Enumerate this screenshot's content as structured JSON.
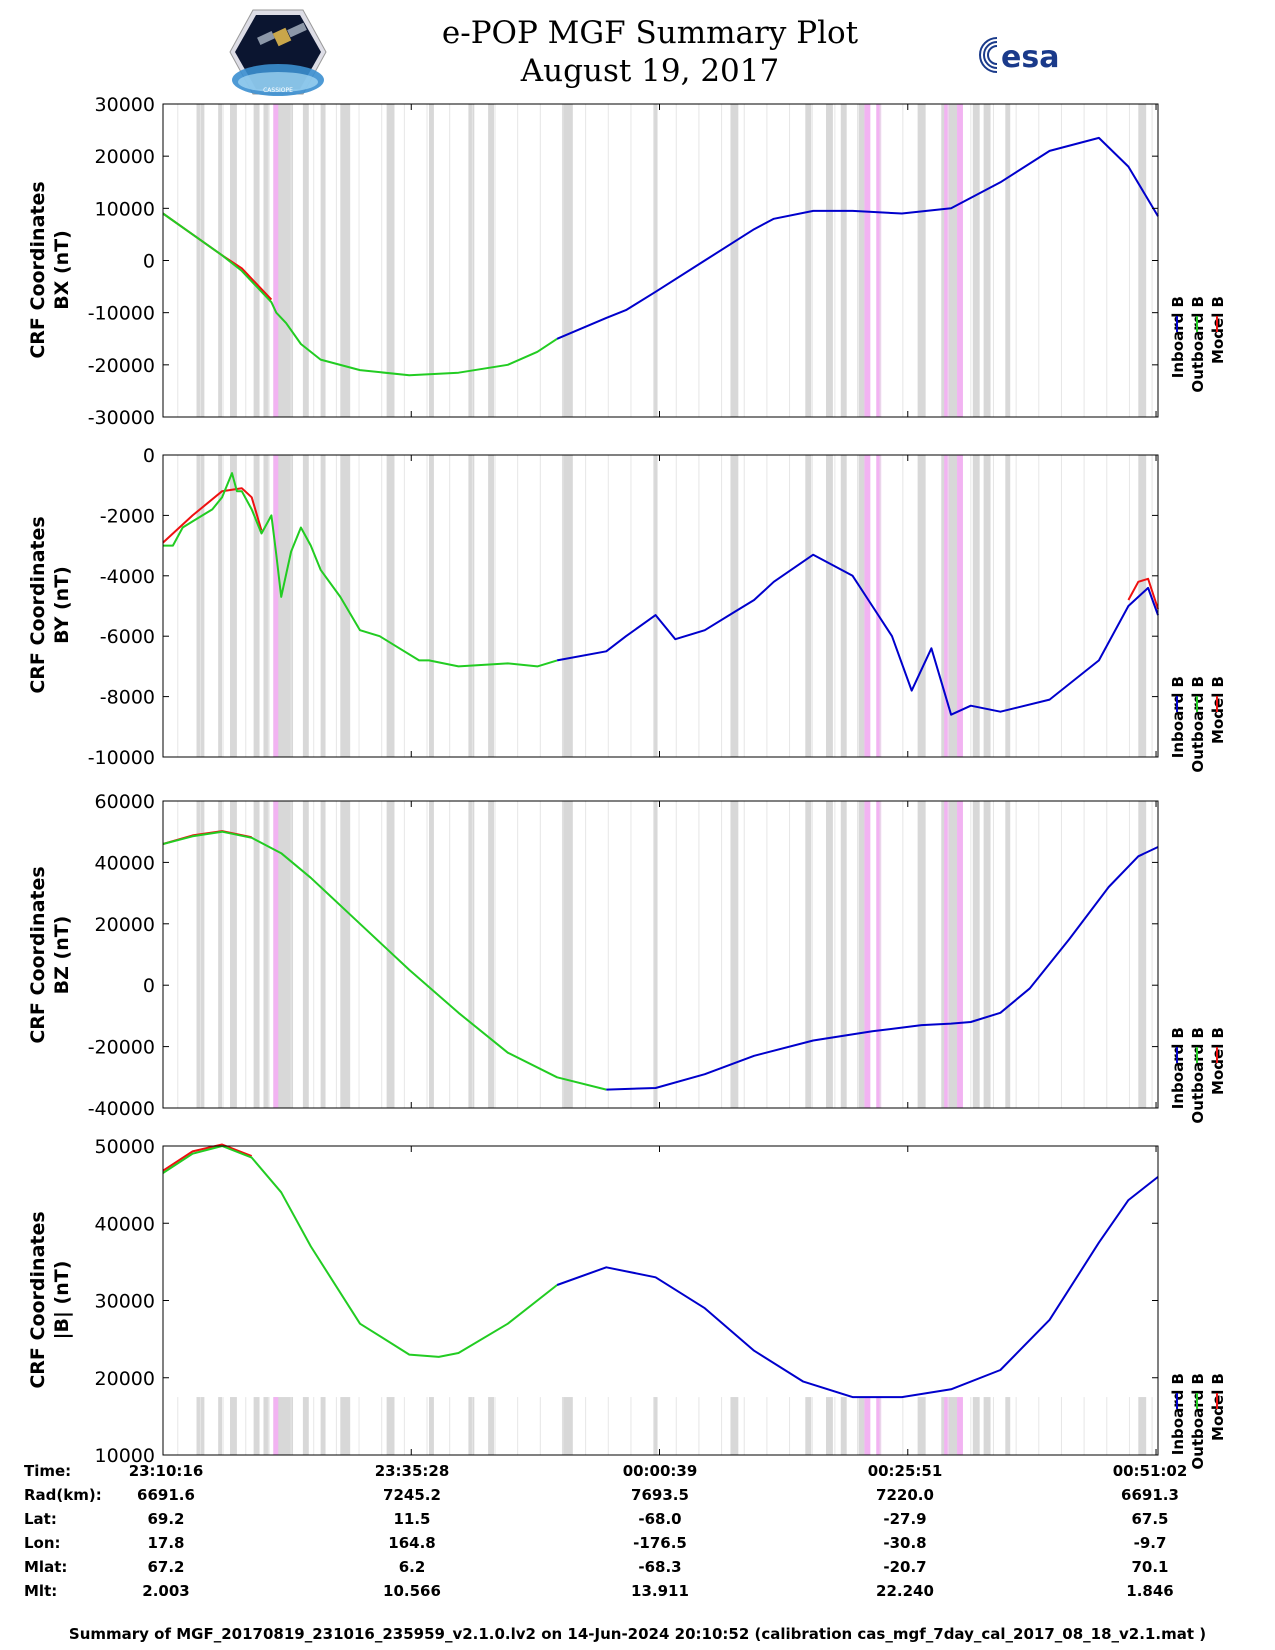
{
  "title": {
    "line1": "e-POP MGF Summary Plot",
    "line2": "August 19, 2017"
  },
  "logos": {
    "left_text": "CASSIOPE",
    "right_text": "esa"
  },
  "legend": {
    "labels": [
      "Inboard B",
      "Outboard B",
      "Model B"
    ],
    "colors": [
      "#0000cc",
      "#22cc22",
      "#ee1111"
    ]
  },
  "colors": {
    "gray_band": "#d8d8d8",
    "magenta_band": "#f2b3f2",
    "inboard": "#0000cc",
    "outboard": "#22cc22",
    "model": "#ee1111"
  },
  "info_table": {
    "labels": [
      "Time:",
      "Rad(km):",
      "Lat:",
      "Lon:",
      "Mlat:",
      "Mlt:"
    ],
    "columns": [
      [
        "23:10:16",
        "6691.6",
        "69.2",
        "17.8",
        "67.2",
        "2.003"
      ],
      [
        "23:35:28",
        "7245.2",
        "11.5",
        "164.8",
        "6.2",
        "10.566"
      ],
      [
        "00:00:39",
        "7693.5",
        "-68.0",
        "-176.5",
        "-68.3",
        "13.911"
      ],
      [
        "00:25:51",
        "7220.0",
        "-27.9",
        "-30.8",
        "-20.7",
        "22.240"
      ],
      [
        "00:51:02",
        "6691.3",
        "67.5",
        "-9.7",
        "70.1",
        "1.846"
      ]
    ]
  },
  "footer": "Summary of MGF_20170819_231016_235959_v2.1.0.lv2 on 14-Jun-2024 20:10:52 (calibration cas_mgf_7day_cal_2017_08_18_v2.1.mat )",
  "chart_data": [
    {
      "type": "line",
      "ylabel_line1": "CRF Coordinates",
      "ylabel_line2": "BX (nT)",
      "ylim": [
        -30000,
        30000
      ],
      "yticks": [
        30000,
        20000,
        10000,
        0,
        -10000,
        -20000,
        -30000
      ],
      "ytick_labels": [
        "30000",
        "20000",
        "10000",
        "0",
        "-10000",
        "-20000",
        "-30000"
      ],
      "x_range_min": [
        0,
        101
      ],
      "series": [
        {
          "name": "Outboard B",
          "x": [
            0,
            3,
            6,
            8,
            9,
            11,
            11.5,
            12.5,
            14,
            16,
            20,
            25,
            30,
            35,
            38,
            40
          ],
          "y": [
            9000,
            5000,
            1000,
            -2000,
            -4000,
            -8000,
            -10000,
            -12000,
            -16000,
            -19000,
            -21000,
            -22000,
            -21500,
            -20000,
            -17500,
            -15000
          ]
        },
        {
          "name": "Inboard B",
          "x": [
            40,
            45,
            47,
            50,
            55,
            60,
            62,
            66,
            70,
            75,
            80,
            85,
            90,
            95,
            98,
            101
          ],
          "y": [
            -15000,
            -11000,
            -9500,
            -6000,
            0,
            6000,
            8000,
            9500,
            9500,
            9000,
            10000,
            15000,
            21000,
            23500,
            18000,
            8500
          ]
        },
        {
          "name": "Model B",
          "x": [
            0,
            3,
            6,
            8,
            9,
            11
          ],
          "y": [
            9000,
            5000,
            1000,
            -1500,
            -3500,
            -7500
          ]
        }
      ],
      "gray_bands_min": [
        [
          3.4,
          4.2
        ],
        [
          5.6,
          6.0
        ],
        [
          6.8,
          7.5
        ],
        [
          9.2,
          9.8
        ],
        [
          10.2,
          10.8
        ],
        [
          11.2,
          13.2
        ],
        [
          14.2,
          14.8
        ],
        [
          16.0,
          16.5
        ],
        [
          18.0,
          19.0
        ],
        [
          22.7,
          23.5
        ],
        [
          27.0,
          27.5
        ],
        [
          31.0,
          31.6
        ],
        [
          33.0,
          33.6
        ],
        [
          40.5,
          41.6
        ],
        [
          49.8,
          50.2
        ],
        [
          57.6,
          58.4
        ],
        [
          65.2,
          65.8
        ],
        [
          67.3,
          68.0
        ],
        [
          68.8,
          69.4
        ],
        [
          70.6,
          71.2
        ],
        [
          76.6,
          77.4
        ],
        [
          79.0,
          80.6
        ],
        [
          82.2,
          82.9
        ],
        [
          83.3,
          84.0
        ],
        [
          85.5,
          86.0
        ],
        [
          99.0,
          99.8
        ]
      ],
      "magenta_bands_min": [
        [
          11.2,
          11.7
        ],
        [
          71.2,
          71.8
        ],
        [
          72.4,
          72.9
        ],
        [
          79.3,
          79.8
        ],
        [
          80.6,
          81.2
        ]
      ]
    },
    {
      "type": "line",
      "ylabel_line1": "CRF Coordinates",
      "ylabel_line2": "BY (nT)",
      "ylim": [
        -10000,
        0
      ],
      "yticks": [
        0,
        -2000,
        -4000,
        -6000,
        -8000,
        -10000
      ],
      "ytick_labels": [
        "0",
        "-2000",
        "-4000",
        "-6000",
        "-8000",
        "-10000"
      ],
      "x_range_min": [
        0,
        101
      ],
      "series": [
        {
          "name": "Outboard B",
          "x": [
            0,
            1,
            2,
            3,
            5,
            6,
            7,
            7.5,
            8,
            9,
            10,
            11,
            11.5,
            12,
            13,
            14,
            15,
            16,
            18,
            20,
            22,
            24,
            26,
            27,
            30,
            35,
            38,
            40
          ],
          "y": [
            -3000,
            -3000,
            -2400,
            -2200,
            -1800,
            -1400,
            -600,
            -1200,
            -1200,
            -1800,
            -2600,
            -2000,
            -3300,
            -4700,
            -3200,
            -2400,
            -3000,
            -3800,
            -4700,
            -5800,
            -6000,
            -6400,
            -6800,
            -6800,
            -7000,
            -6900,
            -7000,
            -6800
          ]
        },
        {
          "name": "Inboard B",
          "x": [
            40,
            45,
            47,
            50,
            52,
            55,
            58,
            60,
            62,
            66,
            70,
            72,
            74,
            76,
            78,
            80,
            82,
            85,
            90,
            95,
            98,
            100,
            101
          ],
          "y": [
            -6800,
            -6500,
            -6000,
            -5300,
            -6100,
            -5800,
            -5200,
            -4800,
            -4200,
            -3300,
            -4000,
            -5000,
            -6000,
            -7800,
            -6400,
            -8600,
            -8300,
            -8500,
            -8100,
            -6800,
            -5000,
            -4400,
            -5300
          ]
        },
        {
          "name": "Model B",
          "x": [
            0,
            3,
            6,
            8,
            9,
            10
          ],
          "y": [
            -2900,
            -2000,
            -1200,
            -1100,
            -1400,
            -2500
          ]
        },
        {
          "name": "Model B",
          "x": [
            98,
            99,
            100,
            101
          ],
          "y": [
            -4800,
            -4200,
            -4100,
            -5100
          ]
        }
      ],
      "gray_bands_min": [
        [
          3.4,
          4.2
        ],
        [
          5.6,
          6.0
        ],
        [
          6.8,
          7.5
        ],
        [
          9.2,
          9.8
        ],
        [
          10.2,
          10.8
        ],
        [
          11.2,
          13.2
        ],
        [
          14.2,
          14.8
        ],
        [
          16.0,
          16.5
        ],
        [
          18.0,
          19.0
        ],
        [
          22.7,
          23.5
        ],
        [
          27.0,
          27.5
        ],
        [
          31.0,
          31.6
        ],
        [
          33.0,
          33.6
        ],
        [
          40.5,
          41.6
        ],
        [
          49.8,
          50.2
        ],
        [
          57.6,
          58.4
        ],
        [
          65.2,
          65.8
        ],
        [
          67.3,
          68.0
        ],
        [
          68.8,
          69.4
        ],
        [
          70.6,
          71.2
        ],
        [
          76.6,
          77.4
        ],
        [
          79.0,
          80.6
        ],
        [
          82.2,
          82.9
        ],
        [
          83.3,
          84.0
        ],
        [
          85.5,
          86.0
        ],
        [
          99.0,
          99.8
        ]
      ],
      "magenta_bands_min": [
        [
          11.2,
          11.7
        ],
        [
          71.2,
          71.8
        ],
        [
          72.4,
          72.9
        ],
        [
          79.3,
          79.8
        ],
        [
          80.6,
          81.2
        ]
      ]
    },
    {
      "type": "line",
      "ylabel_line1": "CRF Coordinates",
      "ylabel_line2": "BZ (nT)",
      "ylim": [
        -40000,
        60000
      ],
      "yticks": [
        60000,
        40000,
        20000,
        0,
        -20000,
        -40000
      ],
      "ytick_labels": [
        "60000",
        "40000",
        "20000",
        "0",
        "-20000",
        "-40000"
      ],
      "x_range_min": [
        0,
        101
      ],
      "series": [
        {
          "name": "Outboard B",
          "x": [
            0,
            3,
            6,
            9,
            12,
            15,
            20,
            25,
            30,
            35,
            40,
            45
          ],
          "y": [
            46000,
            48500,
            50000,
            48000,
            43000,
            35000,
            20000,
            5000,
            -9000,
            -22000,
            -30000,
            -34000
          ]
        },
        {
          "name": "Inboard B",
          "x": [
            45,
            50,
            55,
            60,
            66,
            72,
            77,
            80,
            82,
            85,
            88,
            92,
            96,
            99,
            101
          ],
          "y": [
            -34000,
            -33500,
            -29000,
            -23000,
            -18000,
            -15000,
            -13000,
            -12500,
            -12000,
            -9000,
            -1000,
            15000,
            32000,
            42000,
            45000
          ]
        },
        {
          "name": "Model B",
          "x": [
            0,
            3,
            6,
            9
          ],
          "y": [
            46000,
            48800,
            50200,
            48200
          ]
        }
      ],
      "gray_bands_min": [
        [
          3.4,
          4.2
        ],
        [
          5.6,
          6.0
        ],
        [
          6.8,
          7.5
        ],
        [
          9.2,
          9.8
        ],
        [
          10.2,
          10.8
        ],
        [
          11.2,
          13.2
        ],
        [
          14.2,
          14.8
        ],
        [
          16.0,
          16.5
        ],
        [
          18.0,
          19.0
        ],
        [
          22.7,
          23.5
        ],
        [
          27.0,
          27.5
        ],
        [
          31.0,
          31.6
        ],
        [
          33.0,
          33.6
        ],
        [
          40.5,
          41.6
        ],
        [
          49.8,
          50.2
        ],
        [
          57.6,
          58.4
        ],
        [
          65.2,
          65.8
        ],
        [
          67.3,
          68.0
        ],
        [
          68.8,
          69.4
        ],
        [
          70.6,
          71.2
        ],
        [
          76.6,
          77.4
        ],
        [
          79.0,
          80.6
        ],
        [
          82.2,
          82.9
        ],
        [
          83.3,
          84.0
        ],
        [
          85.5,
          86.0
        ],
        [
          99.0,
          99.8
        ]
      ],
      "magenta_bands_min": [
        [
          11.2,
          11.7
        ],
        [
          71.2,
          71.8
        ],
        [
          72.4,
          72.9
        ],
        [
          79.3,
          79.8
        ],
        [
          80.6,
          81.2
        ]
      ]
    },
    {
      "type": "line",
      "ylabel_line1": "CRF Coordinates",
      "ylabel_line2": "|B| (nT)",
      "ylim": [
        10000,
        50000
      ],
      "yticks": [
        50000,
        40000,
        30000,
        20000,
        10000
      ],
      "ytick_labels": [
        "50000",
        "40000",
        "30000",
        "20000",
        "10000"
      ],
      "x_range_min": [
        0,
        101
      ],
      "series": [
        {
          "name": "Outboard B",
          "x": [
            0,
            3,
            6,
            9,
            12,
            15,
            20,
            25,
            28,
            30,
            35,
            40
          ],
          "y": [
            46500,
            49000,
            50000,
            48500,
            44000,
            37000,
            27000,
            23000,
            22700,
            23200,
            27000,
            32000
          ]
        },
        {
          "name": "Inboard B",
          "x": [
            40,
            45,
            50,
            55,
            60,
            65,
            70,
            75,
            80,
            85,
            90,
            95,
            98,
            101
          ],
          "y": [
            32000,
            34300,
            33000,
            29000,
            23500,
            19500,
            17500,
            17500,
            18500,
            21000,
            27500,
            37500,
            43000,
            46000
          ]
        },
        {
          "name": "Model B",
          "x": [
            0,
            3,
            6,
            9
          ],
          "y": [
            46800,
            49300,
            50200,
            48700
          ]
        }
      ],
      "gray_bands_min": [
        [
          3.4,
          4.2
        ],
        [
          5.6,
          6.0
        ],
        [
          6.8,
          7.5
        ],
        [
          9.2,
          9.8
        ],
        [
          10.2,
          10.8
        ],
        [
          11.2,
          13.2
        ],
        [
          14.2,
          14.8
        ],
        [
          16.0,
          16.5
        ],
        [
          18.0,
          19.0
        ],
        [
          22.7,
          23.5
        ],
        [
          27.0,
          27.5
        ],
        [
          31.0,
          31.6
        ],
        [
          33.0,
          33.6
        ],
        [
          40.5,
          41.6
        ],
        [
          49.8,
          50.2
        ],
        [
          57.6,
          58.4
        ],
        [
          65.2,
          65.8
        ],
        [
          67.3,
          68.0
        ],
        [
          68.8,
          69.4
        ],
        [
          70.6,
          71.2
        ],
        [
          76.6,
          77.4
        ],
        [
          79.0,
          80.6
        ],
        [
          82.2,
          82.9
        ],
        [
          83.3,
          84.0
        ],
        [
          85.5,
          86.0
        ],
        [
          99.0,
          99.8
        ]
      ],
      "magenta_bands_min": [
        [
          11.2,
          11.7
        ],
        [
          71.2,
          71.8
        ],
        [
          72.4,
          72.9
        ],
        [
          79.3,
          79.8
        ],
        [
          80.6,
          81.2
        ]
      ],
      "band_top_value": 17500
    }
  ]
}
